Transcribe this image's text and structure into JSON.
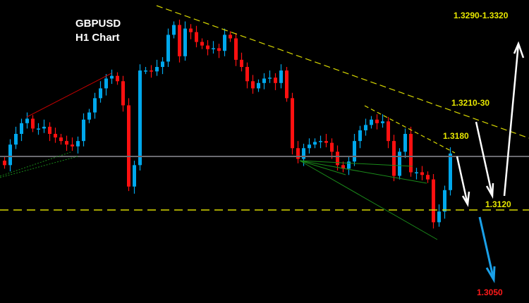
{
  "chart_data": {
    "type": "candlestick",
    "title": "GBPUSD",
    "subtitle": "H1 Chart",
    "colors": {
      "bull": "#00a8ec",
      "bear": "#ff1010",
      "background": "#000000",
      "trendline": "#d8d800",
      "arrows": "#ffffff",
      "down_arrow": "#1aa0e8",
      "target_red": "#ff1a1a"
    },
    "price_range": [
      1.301,
      1.3355
    ],
    "closes": [
      1.317,
      1.3193,
      1.3205,
      1.3217,
      1.3222,
      1.3211,
      1.3211,
      1.3213,
      1.3205,
      1.3201,
      1.3197,
      1.3193,
      1.3191,
      1.3197,
      1.3221,
      1.3229,
      1.3245,
      1.3256,
      1.3267,
      1.327,
      1.3264,
      1.3237,
      1.3146,
      1.317,
      1.3276,
      1.3276,
      1.3275,
      1.328,
      1.3286,
      1.3316,
      1.3327,
      1.3292,
      1.3323,
      1.3319,
      1.3308,
      1.3304,
      1.33,
      1.3301,
      1.3298,
      1.3316,
      1.3312,
      1.3288,
      1.328,
      1.3264,
      1.3256,
      1.3262,
      1.3267,
      1.3268,
      1.3262,
      1.3276,
      1.3245,
      1.3189,
      1.3177,
      1.3189,
      1.3193,
      1.3196,
      1.3197,
      1.3195,
      1.3185,
      1.317,
      1.3166,
      1.3174,
      1.3197,
      1.3209,
      1.3215,
      1.3221,
      1.3217,
      1.3219,
      1.3197,
      1.3158,
      1.3185,
      1.3205,
      1.3162,
      1.3162,
      1.3159,
      1.3154,
      1.3106,
      1.3118,
      1.3142,
      1.3183
    ],
    "current_price": 1.318,
    "support_level": 1.312,
    "annotations": [
      {
        "text": "1.3290-1.3320",
        "color": "#e8e800"
      },
      {
        "text": "1.3210-30",
        "color": "#e8e800"
      },
      {
        "text": "1.3180",
        "color": "#e8e800"
      },
      {
        "text": "1.3120",
        "color": "#e8e800"
      },
      {
        "text": "1.3050",
        "color": "#ff1a1a"
      }
    ]
  }
}
